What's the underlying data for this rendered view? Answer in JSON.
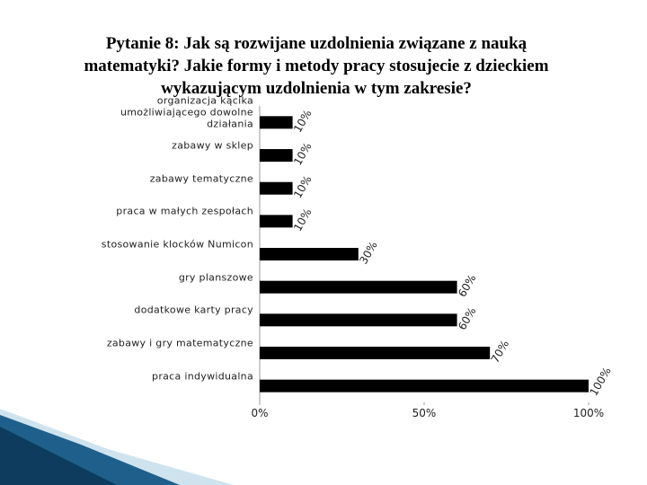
{
  "chart_data": {
    "type": "bar",
    "orientation": "horizontal",
    "title": "Pytanie 8: Jak są rozwijane uzdolnienia związane z nauką matematyki? Jakie formy i metody pracy stosujecie z dzieckiem wykazującym uzdolnienia w tym zakresie?",
    "categories": [
      "organizacja kącika umożliwiającego dowolne działania",
      "zabawy w sklep",
      "zabawy tematyczne",
      "praca w małych zespołach",
      "stosowanie klocków Numicon",
      "gry planszowe",
      "dodatkowe karty pracy",
      "zabawy i gry matematyczne",
      "praca indywidualna"
    ],
    "values": [
      10,
      10,
      10,
      10,
      30,
      60,
      60,
      70,
      100
    ],
    "value_labels": [
      "10%",
      "10%",
      "10%",
      "10%",
      "30%",
      "60%",
      "60%",
      "70%",
      "100%"
    ],
    "color": "#000000",
    "xlim": [
      0,
      100
    ],
    "xticks": [
      {
        "value": 0,
        "label": "0%"
      },
      {
        "value": 50,
        "label": "50%"
      },
      {
        "value": 100,
        "label": "100%"
      }
    ]
  }
}
